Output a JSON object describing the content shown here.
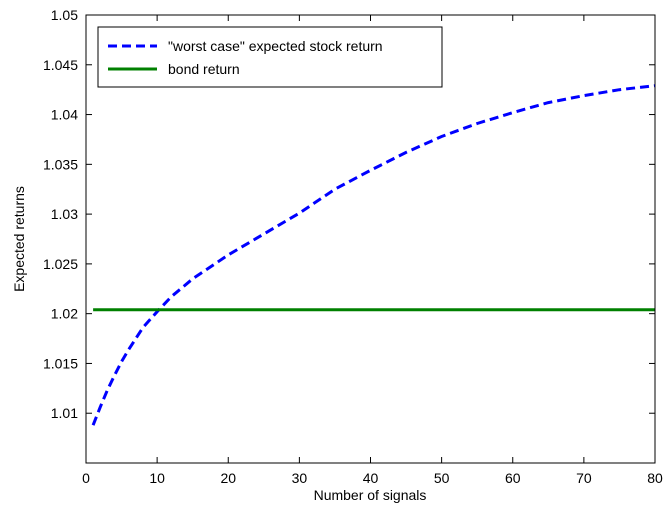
{
  "chart_data": {
    "type": "line",
    "xlabel": "Number of signals",
    "ylabel": "Expected returns",
    "xlim": [
      0,
      80
    ],
    "ylim": [
      1.005,
      1.05
    ],
    "xticks": [
      0,
      10,
      20,
      30,
      40,
      50,
      60,
      70,
      80
    ],
    "yticks": [
      1.01,
      1.015,
      1.02,
      1.025,
      1.03,
      1.035,
      1.04,
      1.045,
      1.05
    ],
    "ytick_labels": [
      "1.01",
      "1.015",
      "1.02",
      "1.025",
      "1.03",
      "1.035",
      "1.04",
      "1.045",
      "1.05"
    ],
    "grid": false,
    "legend_position": "top-left",
    "series": [
      {
        "name": "\"worst case\" expected stock return",
        "color": "#0000ff",
        "line_style": "dashed",
        "x": [
          1,
          2,
          3,
          4,
          5,
          6,
          8,
          10,
          12,
          15,
          20,
          25,
          30,
          35,
          40,
          45,
          50,
          55,
          60,
          65,
          70,
          75,
          80
        ],
        "y": [
          1.0088,
          1.0106,
          1.0123,
          1.0138,
          1.0152,
          1.0164,
          1.0186,
          1.0202,
          1.0217,
          1.0235,
          1.0259,
          1.028,
          1.0301,
          1.0325,
          1.0344,
          1.0362,
          1.0378,
          1.0391,
          1.0402,
          1.0412,
          1.0419,
          1.0425,
          1.0429
        ]
      },
      {
        "name": "bond return",
        "color": "#008000",
        "line_style": "solid",
        "x": [
          1,
          80
        ],
        "y": [
          1.0204,
          1.0204
        ]
      }
    ]
  }
}
